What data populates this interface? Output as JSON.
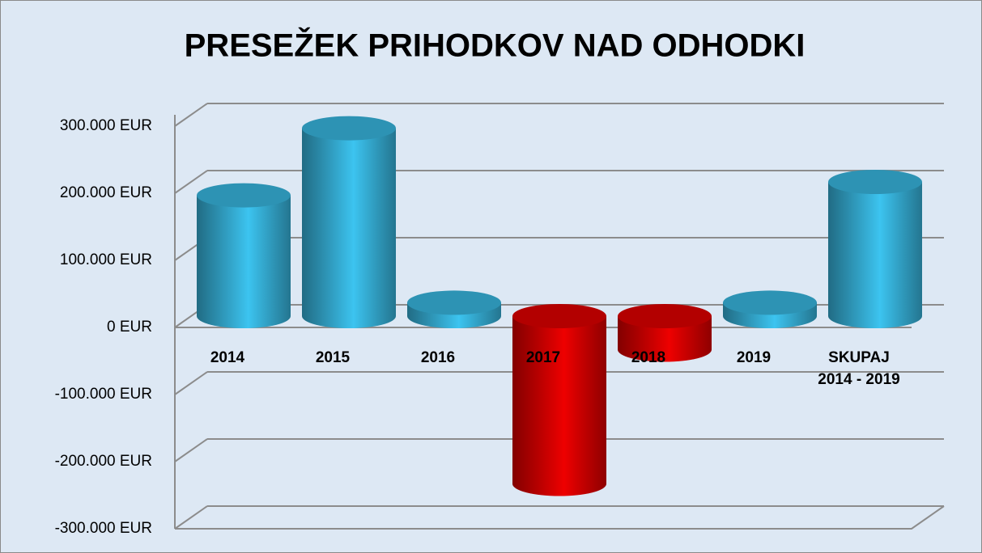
{
  "chart_data": {
    "type": "bar3d",
    "title": "PRESEŽEK PRIHODKOV NAD ODHODKI",
    "categories": [
      "2014",
      "2015",
      "2016",
      "2017",
      "2018",
      "2019",
      "SKUPAJ 2014 - 2019"
    ],
    "values": [
      180000,
      280000,
      20000,
      -250000,
      -50000,
      20000,
      200000
    ],
    "colors": [
      "#3cc4f0",
      "#3cc4f0",
      "#3cc4f0",
      "#ee0000",
      "#ee0000",
      "#3cc4f0",
      "#3cc4f0"
    ],
    "ylim": [
      -300000,
      300000
    ],
    "yticks": [
      {
        "value": -300000,
        "label": "-300.000 EUR"
      },
      {
        "value": -200000,
        "label": "-200.000 EUR"
      },
      {
        "value": -100000,
        "label": "-100.000 EUR"
      },
      {
        "value": 0,
        "label": "0 EUR"
      },
      {
        "value": 100000,
        "label": "100.000 EUR"
      },
      {
        "value": 200000,
        "label": "200.000 EUR"
      },
      {
        "value": 300000,
        "label": "300.000 EUR"
      }
    ],
    "grid": true
  }
}
